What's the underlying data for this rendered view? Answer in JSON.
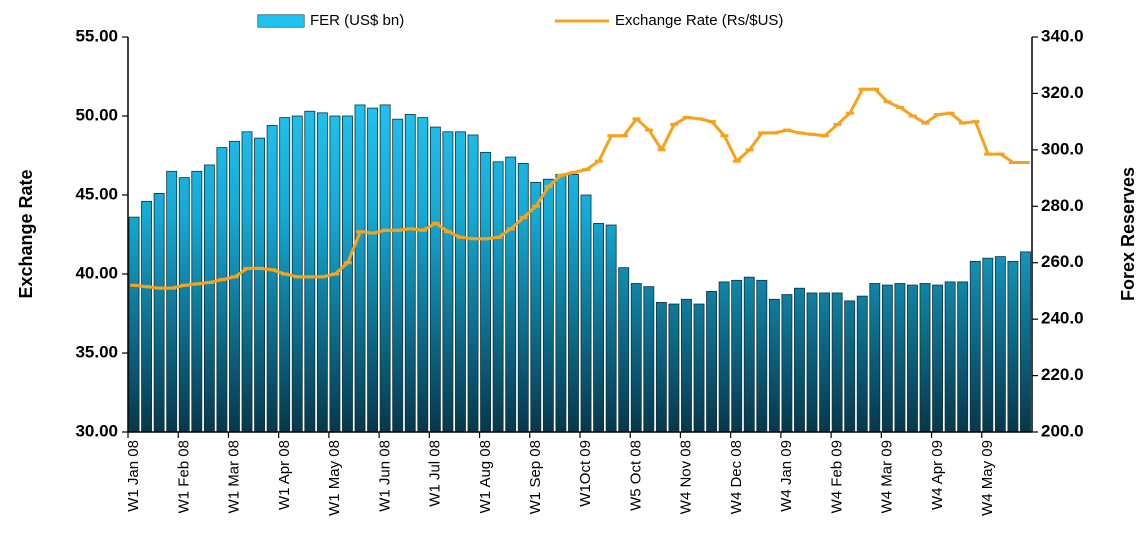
{
  "chart_data": {
    "type": "bar",
    "y_label": "Exchange Rate",
    "y2_label": "Forex Reserves",
    "categories": [
      "W1 Jan 08",
      null,
      null,
      null,
      "W1 Feb 08",
      null,
      null,
      null,
      "W1 Mar 08",
      null,
      null,
      null,
      "W1 Apr 08",
      null,
      null,
      null,
      "W1 May 08",
      null,
      null,
      null,
      "W1 Jun 08",
      null,
      null,
      null,
      "W1 Jul 08",
      null,
      null,
      null,
      "W1 Aug 08",
      null,
      null,
      null,
      "W1 Sep 08",
      null,
      null,
      null,
      "W1Oct 09",
      null,
      null,
      null,
      "W5 Oct 08",
      null,
      null,
      null,
      "W4 Nov 08",
      null,
      null,
      null,
      "W4 Dec 08",
      null,
      null,
      null,
      "W4 Jan 09",
      null,
      null,
      null,
      "W4 Feb 09",
      null,
      null,
      null,
      "W4 Mar 09",
      null,
      null,
      null,
      "W4 Apr 09",
      null,
      null,
      null,
      "W4 May 09",
      null,
      null,
      null
    ],
    "series": [
      {
        "name": "FER (US$ bn)",
        "type": "bar",
        "color": "#1fc0ef",
        "values": [
          43.6,
          44.6,
          45.1,
          46.5,
          46.1,
          46.5,
          46.9,
          48.0,
          48.4,
          49.0,
          48.6,
          49.4,
          49.9,
          50.0,
          50.3,
          50.2,
          50.0,
          50.0,
          50.7,
          50.5,
          50.7,
          49.8,
          50.1,
          49.9,
          49.3,
          49.0,
          49.0,
          48.8,
          47.7,
          47.1,
          47.4,
          47.0,
          45.8,
          46.0,
          46.3,
          46.3,
          45.0,
          43.2,
          43.1,
          40.4,
          39.4,
          39.2,
          38.2,
          38.1,
          38.4,
          38.1,
          38.9,
          39.5,
          39.6,
          39.8,
          39.6,
          38.4,
          38.7,
          39.1,
          38.8,
          38.8,
          38.8,
          38.3,
          38.6,
          39.4,
          39.3,
          39.4,
          39.3,
          39.4,
          39.3,
          39.5,
          39.5,
          40.8,
          41.0,
          41.1,
          40.8,
          41.4
        ]
      },
      {
        "name": "Exchange Rate (Rs/$US)",
        "type": "line",
        "axis": "y2",
        "color": "#f7a21c",
        "values": [
          252,
          251.5,
          251,
          251,
          252,
          252.5,
          253,
          254,
          255,
          258,
          258,
          257.5,
          256,
          255,
          255,
          255,
          256,
          260,
          271,
          270.5,
          271.5,
          271.5,
          272,
          271.5,
          274,
          271,
          269,
          268.5,
          268.5,
          269,
          272,
          276,
          280,
          287,
          291,
          292,
          293,
          296,
          305,
          305,
          311,
          307,
          300,
          309,
          311.5,
          311,
          310,
          305,
          296,
          300,
          306,
          306,
          307,
          306,
          305.5,
          305,
          309,
          313,
          321.5,
          321.5,
          317,
          315,
          312,
          309.5,
          312.5,
          313,
          309.5,
          310,
          298.5,
          298.5,
          295.5,
          295.5
        ]
      }
    ],
    "ylim": [
      30,
      55
    ],
    "yticks": [
      {
        "value": 30,
        "label": "30.00"
      },
      {
        "value": 35,
        "label": "35.00"
      },
      {
        "value": 40,
        "label": "40.00"
      },
      {
        "value": 45,
        "label": "45.00"
      },
      {
        "value": 50,
        "label": "50.00"
      },
      {
        "value": 55,
        "label": "55.00"
      }
    ],
    "y2lim": [
      200,
      340
    ],
    "y2ticks": [
      {
        "value": 200,
        "label": "200.0"
      },
      {
        "value": 220,
        "label": "220.0"
      },
      {
        "value": 240,
        "label": "240.0"
      },
      {
        "value": 260,
        "label": "260.0"
      },
      {
        "value": 280,
        "label": "280.0"
      },
      {
        "value": 300,
        "label": "300.0"
      },
      {
        "value": 320,
        "label": "320.0"
      },
      {
        "value": 340,
        "label": "340.0"
      }
    ],
    "grid": false,
    "legend": "top"
  }
}
